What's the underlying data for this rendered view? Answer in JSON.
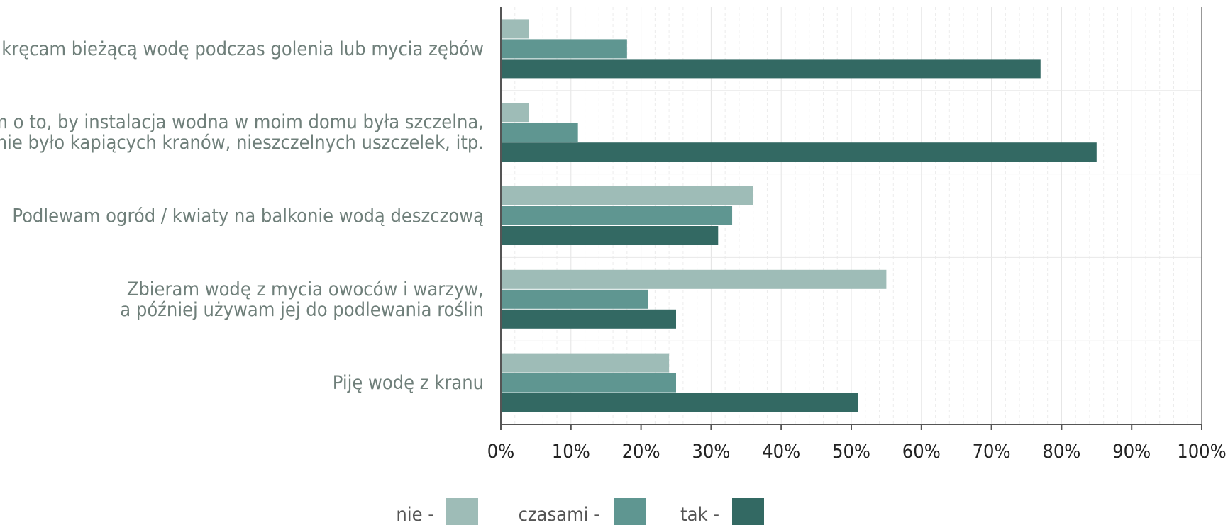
{
  "chart_data": {
    "type": "bar",
    "orientation": "horizontal",
    "categories": [
      [
        "Zakręcam bieżącą wodę podczas golenia lub mycia zębów"
      ],
      [
        "Dbam o to, by instalacja wodna w moim domu była szczelna,",
        "aby nie było kapiących kranów, nieszczelnych uszczelek, itp."
      ],
      [
        "Podlewam ogród / kwiaty na balkonie wodą deszczową"
      ],
      [
        "Zbieram wodę z mycia owoców i warzyw,",
        "a później używam jej do podlewania roślin"
      ],
      [
        "Piję wodę z kranu"
      ]
    ],
    "series": [
      {
        "name": "nie -",
        "color": "#9ebcb7",
        "values": [
          4,
          4,
          36,
          55,
          24
        ]
      },
      {
        "name": "czasami -",
        "color": "#5f9691",
        "values": [
          18,
          11,
          33,
          21,
          25
        ]
      },
      {
        "name": "tak -",
        "color": "#336963",
        "values": [
          77,
          85,
          31,
          25,
          51
        ]
      }
    ],
    "xlim": [
      0,
      100
    ],
    "xticks": [
      "0%",
      "10%",
      "20%",
      "30%",
      "40%",
      "50%",
      "60%",
      "70%",
      "80%",
      "90%",
      "100%"
    ],
    "grid": true,
    "legend_position": "bottom"
  }
}
